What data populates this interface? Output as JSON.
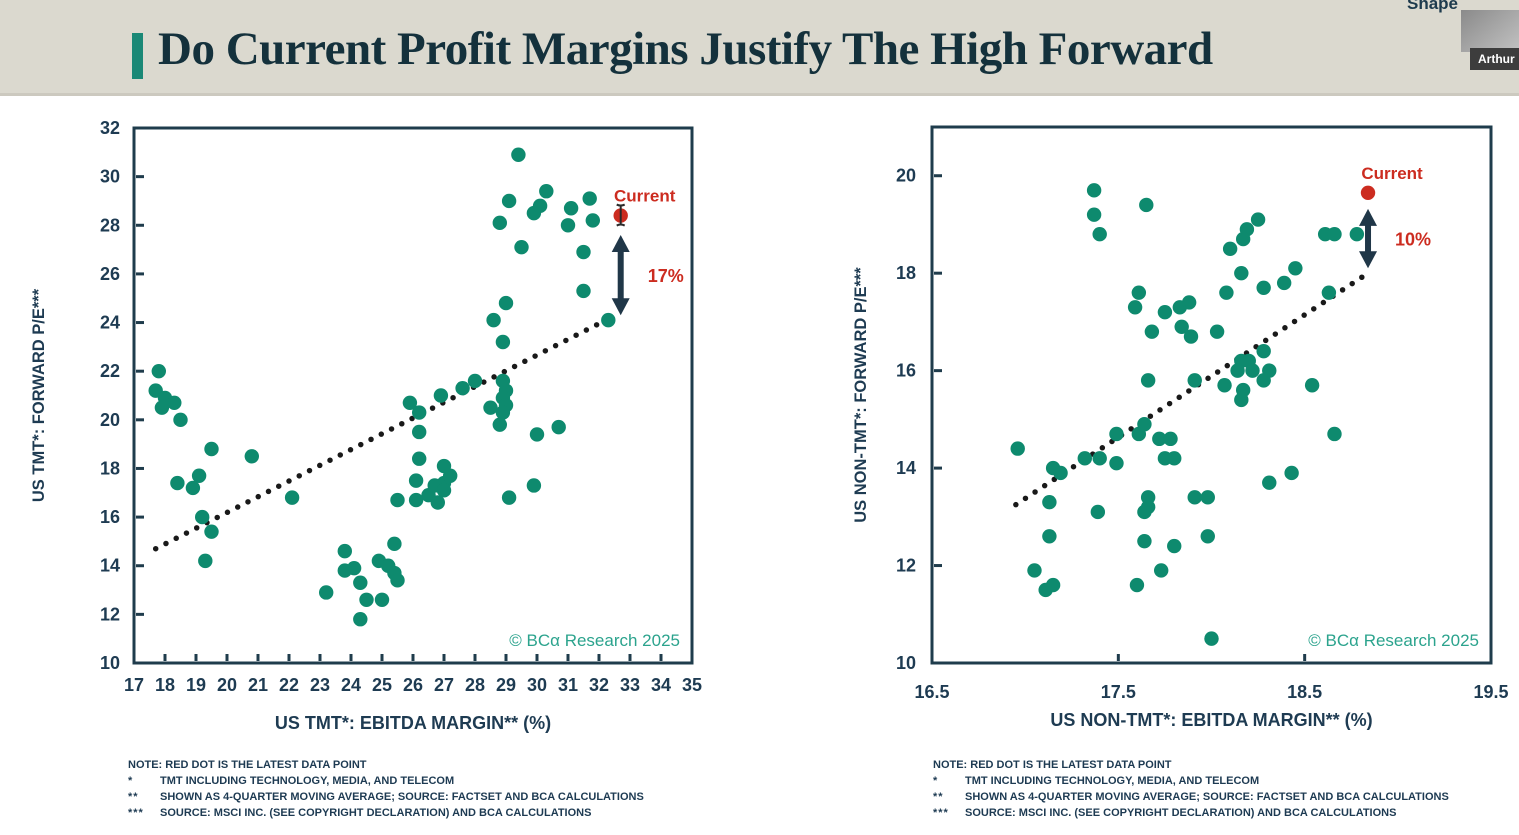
{
  "header": {
    "title": "Do Current Profit Margins Justify The High Forward",
    "toolbar_label": "Shape",
    "cursor_name": "Arthur"
  },
  "colors": {
    "accent": "#1a8876",
    "dot": "#0e8a6e",
    "axis": "#1f3c4c",
    "tick_label": "#1e3b52",
    "red": "#cc2c20",
    "arrow": "#203748",
    "trend": "#191919",
    "copyright": "#2ba38d",
    "header_bg": "#dbd9cf"
  },
  "footnotes": {
    "note": "NOTE: RED DOT IS THE LATEST DATA POINT",
    "items": [
      {
        "marker": "*",
        "text": "TMT INCLUDING TECHNOLOGY, MEDIA, AND TELECOM"
      },
      {
        "marker": "**",
        "text": "SHOWN AS 4-QUARTER MOVING AVERAGE; SOURCE: FACTSET AND BCA CALCULATIONS"
      },
      {
        "marker": "***",
        "text": "SOURCE: MSCI INC. (SEE COPYRIGHT DECLARATION) AND BCA CALCULATIONS"
      }
    ]
  },
  "chart_data": [
    {
      "type": "scatter",
      "ylabel": "US TMT*: FORWARD P/E***",
      "xlabel": "US TMT*: EBITDA MARGIN** (%)",
      "xlim": [
        17,
        35
      ],
      "ylim": [
        10,
        32
      ],
      "xticks": [
        17,
        18,
        19,
        20,
        21,
        22,
        23,
        24,
        25,
        26,
        27,
        28,
        29,
        30,
        31,
        32,
        33,
        34,
        35
      ],
      "yticks": [
        32,
        30,
        28,
        26,
        24,
        22,
        20,
        18,
        16,
        14,
        12,
        10
      ],
      "grid": false,
      "copyright": "© BCα Research 2025",
      "current": {
        "x": 32.7,
        "y": 28.4,
        "label": "Current"
      },
      "annotation": {
        "label": "17%",
        "arrow_x": 32.7,
        "arrow_top": 27.6,
        "arrow_bottom": 24.3
      },
      "trend": {
        "x1": 17.7,
        "y1": 14.7,
        "x2": 32.3,
        "y2": 24.15,
        "style": "dotted"
      },
      "text_cursor": true,
      "points": [
        [
          17.8,
          22.0
        ],
        [
          17.7,
          21.2
        ],
        [
          18.0,
          20.9
        ],
        [
          17.9,
          20.5
        ],
        [
          18.3,
          20.7
        ],
        [
          18.5,
          20.0
        ],
        [
          19.5,
          18.8
        ],
        [
          20.8,
          18.5
        ],
        [
          19.1,
          17.7
        ],
        [
          18.4,
          17.4
        ],
        [
          18.9,
          17.2
        ],
        [
          19.2,
          16.0
        ],
        [
          19.5,
          15.4
        ],
        [
          19.3,
          14.2
        ],
        [
          22.1,
          16.8
        ],
        [
          23.2,
          12.9
        ],
        [
          23.8,
          14.6
        ],
        [
          24.1,
          13.9
        ],
        [
          23.8,
          13.8
        ],
        [
          24.3,
          13.3
        ],
        [
          25.4,
          14.9
        ],
        [
          24.9,
          14.2
        ],
        [
          25.2,
          14.0
        ],
        [
          25.4,
          13.7
        ],
        [
          25.5,
          13.4
        ],
        [
          24.5,
          12.6
        ],
        [
          25.0,
          12.6
        ],
        [
          24.3,
          11.8
        ],
        [
          25.5,
          16.7
        ],
        [
          26.1,
          16.7
        ],
        [
          26.5,
          16.9
        ],
        [
          26.8,
          16.6
        ],
        [
          26.1,
          17.5
        ],
        [
          26.7,
          17.3
        ],
        [
          27.0,
          17.4
        ],
        [
          27.2,
          17.7
        ],
        [
          27.0,
          17.1
        ],
        [
          26.2,
          18.4
        ],
        [
          27.0,
          18.1
        ],
        [
          25.9,
          20.7
        ],
        [
          26.2,
          20.3
        ],
        [
          26.9,
          21.0
        ],
        [
          27.6,
          21.3
        ],
        [
          28.0,
          21.6
        ],
        [
          26.2,
          19.5
        ],
        [
          28.5,
          20.5
        ],
        [
          28.9,
          21.6
        ],
        [
          29.0,
          21.2
        ],
        [
          28.9,
          20.9
        ],
        [
          29.0,
          20.6
        ],
        [
          28.9,
          20.3
        ],
        [
          28.8,
          19.8
        ],
        [
          30.0,
          19.4
        ],
        [
          30.7,
          19.7
        ],
        [
          29.9,
          17.3
        ],
        [
          29.1,
          16.8
        ],
        [
          28.8,
          28.1
        ],
        [
          29.1,
          29.0
        ],
        [
          29.4,
          30.9
        ],
        [
          29.9,
          28.5
        ],
        [
          30.1,
          28.8
        ],
        [
          30.3,
          29.4
        ],
        [
          31.1,
          28.7
        ],
        [
          31.7,
          29.1
        ],
        [
          31.0,
          28.0
        ],
        [
          31.8,
          28.2
        ],
        [
          29.5,
          27.1
        ],
        [
          31.5,
          26.9
        ],
        [
          31.5,
          25.3
        ],
        [
          29.0,
          24.8
        ],
        [
          28.6,
          24.1
        ],
        [
          28.9,
          23.2
        ],
        [
          32.3,
          24.1
        ]
      ]
    },
    {
      "type": "scatter",
      "ylabel": "US NON-TMT*: FORWARD P/E***",
      "xlabel": "US NON-TMT*: EBITDA MARGIN** (%)",
      "xlim": [
        16.5,
        19.5
      ],
      "ylim": [
        10,
        21
      ],
      "xticks": [
        16.5,
        17.5,
        18.5,
        19.5
      ],
      "yticks": [
        20,
        18,
        16,
        14,
        12,
        10
      ],
      "grid": false,
      "copyright": "© BCα Research 2025",
      "current": {
        "x": 18.84,
        "y": 19.65,
        "label": "Current"
      },
      "annotation": {
        "label": "10%",
        "arrow_x": 18.84,
        "arrow_top": 19.32,
        "arrow_bottom": 18.1
      },
      "trend": {
        "x1": 16.95,
        "y1": 13.25,
        "x2": 18.82,
        "y2": 17.95,
        "style": "dotted"
      },
      "text_cursor": false,
      "points": [
        [
          17.37,
          19.7
        ],
        [
          17.65,
          19.4
        ],
        [
          17.37,
          19.2
        ],
        [
          17.4,
          18.8
        ],
        [
          17.61,
          17.6
        ],
        [
          17.59,
          17.3
        ],
        [
          17.75,
          17.2
        ],
        [
          17.83,
          17.3
        ],
        [
          17.88,
          17.4
        ],
        [
          17.68,
          16.8
        ],
        [
          17.84,
          16.9
        ],
        [
          17.89,
          16.7
        ],
        [
          17.66,
          15.8
        ],
        [
          17.91,
          15.8
        ],
        [
          17.49,
          14.7
        ],
        [
          17.61,
          14.7
        ],
        [
          17.64,
          14.9
        ],
        [
          17.72,
          14.6
        ],
        [
          17.78,
          14.6
        ],
        [
          17.75,
          14.2
        ],
        [
          17.8,
          14.2
        ],
        [
          16.96,
          14.4
        ],
        [
          17.15,
          14.0
        ],
        [
          17.19,
          13.9
        ],
        [
          17.32,
          14.2
        ],
        [
          17.4,
          14.2
        ],
        [
          17.49,
          14.1
        ],
        [
          17.13,
          13.3
        ],
        [
          17.39,
          13.1
        ],
        [
          17.66,
          13.4
        ],
        [
          17.66,
          13.2
        ],
        [
          17.64,
          13.1
        ],
        [
          17.91,
          13.4
        ],
        [
          17.98,
          13.4
        ],
        [
          17.13,
          12.6
        ],
        [
          17.64,
          12.5
        ],
        [
          17.8,
          12.4
        ],
        [
          17.98,
          12.6
        ],
        [
          17.05,
          11.9
        ],
        [
          17.73,
          11.9
        ],
        [
          17.11,
          11.5
        ],
        [
          17.15,
          11.6
        ],
        [
          17.6,
          11.6
        ],
        [
          18.0,
          10.5
        ],
        [
          18.25,
          19.1
        ],
        [
          18.19,
          18.9
        ],
        [
          18.17,
          18.7
        ],
        [
          18.1,
          18.5
        ],
        [
          18.61,
          18.8
        ],
        [
          18.66,
          18.8
        ],
        [
          18.78,
          18.8
        ],
        [
          18.16,
          18.0
        ],
        [
          18.45,
          18.1
        ],
        [
          18.39,
          17.8
        ],
        [
          18.28,
          17.7
        ],
        [
          18.08,
          17.6
        ],
        [
          18.03,
          16.8
        ],
        [
          18.63,
          17.6
        ],
        [
          18.28,
          16.4
        ],
        [
          18.16,
          16.2
        ],
        [
          18.2,
          16.2
        ],
        [
          18.14,
          16.0
        ],
        [
          18.22,
          16.0
        ],
        [
          18.31,
          16.0
        ],
        [
          18.07,
          15.7
        ],
        [
          18.17,
          15.6
        ],
        [
          18.28,
          15.8
        ],
        [
          18.16,
          15.4
        ],
        [
          18.54,
          15.7
        ],
        [
          18.66,
          14.7
        ],
        [
          18.43,
          13.9
        ],
        [
          18.31,
          13.7
        ]
      ]
    }
  ]
}
